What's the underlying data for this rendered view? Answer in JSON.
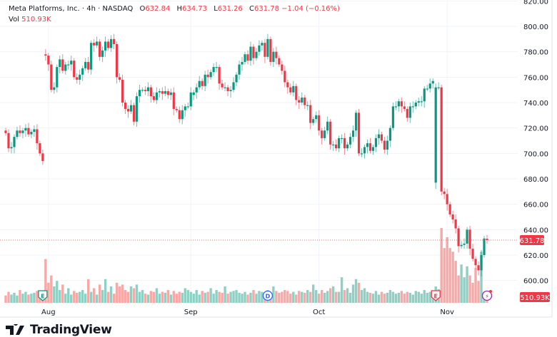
{
  "header": {
    "symbol": "Meta Platforms, Inc.",
    "interval": "4h",
    "exchange": "NASDAQ",
    "open_label": "O",
    "open": "632.84",
    "high_label": "H",
    "high": "634.73",
    "low_label": "L",
    "low": "631.26",
    "close_label": "C",
    "close": "631.78",
    "change": "−1.04 (−0.16%)",
    "vol_label": "Vol",
    "vol": "510.93K"
  },
  "footer": {
    "brand": "TradingView"
  },
  "colors": {
    "up": "#089981",
    "down": "#F23645",
    "vol_up": "#8fd0c5",
    "vol_down": "#f7a9a7",
    "grid": "#f0f3fa"
  },
  "chart_data": {
    "type": "candlestick",
    "title": "Meta Platforms, Inc. · 4h · NASDAQ",
    "yticks": [
      600,
      620,
      640,
      660,
      680,
      700,
      720,
      740,
      760,
      780,
      800,
      820
    ],
    "ytick_labels": [
      "600.00",
      "620.00",
      "640.00",
      "660.00",
      "680.00",
      "700.00",
      "720.00",
      "740.00",
      "760.00",
      "780.00",
      "800.00",
      "820.00"
    ],
    "ylim": [
      585,
      820
    ],
    "xtick_labels": [
      {
        "label": "Aug",
        "index": 15
      },
      {
        "label": "Sep",
        "index": 65
      },
      {
        "label": "Oct",
        "index": 110
      },
      {
        "label": "Nov",
        "index": 155
      }
    ],
    "last_price_label": "631.78",
    "last_volume_label": "510.93K",
    "grid": true,
    "markers": [
      {
        "type": "earnings",
        "label": "E",
        "index": 13,
        "color": "#089981"
      },
      {
        "type": "dividend",
        "label": "D",
        "index": 92,
        "color": "#2962FF"
      },
      {
        "type": "earnings",
        "label": "E",
        "index": 151,
        "color": "#F23645"
      },
      {
        "type": "event",
        "label": "⚡",
        "index": 169,
        "color": "#9c27b0"
      }
    ],
    "close": [
      716,
      704,
      705,
      713,
      718,
      716,
      718,
      720,
      715,
      717,
      719,
      708,
      700,
      694,
      777,
      770,
      750,
      752,
      768,
      774,
      765,
      770,
      770,
      773,
      760,
      758,
      762,
      767,
      772,
      766,
      787,
      785,
      788,
      776,
      781,
      788,
      783,
      790,
      786,
      760,
      758,
      740,
      735,
      733,
      738,
      725,
      745,
      750,
      750,
      749,
      752,
      745,
      742,
      748,
      749,
      747,
      749,
      746,
      748,
      735,
      734,
      727,
      734,
      737,
      737,
      748,
      748,
      752,
      757,
      753,
      762,
      760,
      764,
      768,
      768,
      755,
      752,
      752,
      749,
      750,
      756,
      762,
      770,
      772,
      778,
      773,
      784,
      775,
      780,
      785,
      787,
      776,
      790,
      772,
      780,
      775,
      770,
      765,
      756,
      752,
      748,
      753,
      742,
      740,
      744,
      738,
      738,
      724,
      727,
      730,
      718,
      712,
      718,
      725,
      707,
      707,
      704,
      712,
      712,
      704,
      707,
      713,
      718,
      732,
      700,
      700,
      705,
      708,
      702,
      705,
      712,
      715,
      710,
      703,
      710,
      720,
      737,
      737,
      741,
      737,
      735,
      728,
      737,
      737,
      740,
      741,
      741,
      751,
      751,
      755,
      757,
      752,
      752,
      670,
      668,
      660,
      652,
      648,
      641,
      627,
      628,
      629,
      640,
      625,
      617,
      612,
      608,
      620,
      633,
      631.78
    ],
    "open_overrides": {
      "14": 778,
      "66": 746,
      "151": 677,
      "169": 632.84
    },
    "volume_k": [
      400,
      600,
      450,
      550,
      400,
      700,
      500,
      600,
      450,
      500,
      550,
      650,
      600,
      650,
      2400,
      1100,
      1500,
      900,
      1200,
      700,
      1000,
      500,
      800,
      450,
      650,
      550,
      600,
      700,
      500,
      1300,
      600,
      800,
      450,
      1000,
      700,
      1300,
      600,
      900,
      500,
      1100,
      900,
      1000,
      700,
      600,
      900,
      800,
      1000,
      600,
      700,
      500,
      450,
      650,
      600,
      800,
      500,
      600,
      550,
      700,
      450,
      650,
      500,
      600,
      550,
      800,
      700,
      600,
      500,
      700,
      450,
      650,
      550,
      600,
      800,
      500,
      700,
      600,
      550,
      900,
      500,
      600,
      650,
      700,
      550,
      500,
      600,
      450,
      550,
      700,
      500,
      650,
      600,
      550,
      700,
      500,
      900,
      650,
      550,
      600,
      700,
      650,
      500,
      600,
      450,
      650,
      600,
      550,
      700,
      600,
      1000,
      700,
      500,
      700,
      550,
      650,
      800,
      900,
      600,
      600,
      1400,
      700,
      800,
      550,
      1000,
      1300,
      1100,
      700,
      800,
      600,
      550,
      500,
      650,
      450,
      600,
      500,
      550,
      700,
      600,
      500,
      550,
      650,
      500,
      600,
      550,
      450,
      650,
      600,
      500,
      700,
      550,
      600,
      650,
      900,
      750,
      4100,
      3000,
      3600,
      3000,
      2800,
      2300,
      1500,
      2100,
      1400,
      2000,
      1500,
      1100,
      1900,
      1200,
      2800,
      600,
      511
    ]
  }
}
